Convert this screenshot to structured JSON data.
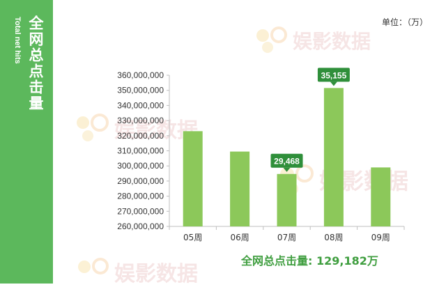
{
  "side": {
    "title": "全网总点击量",
    "subtitle": "Total net hits"
  },
  "unit": "单位：（万）",
  "watermark": "娱影数据",
  "total_text": "全网总点击量: 129,182万",
  "colors": {
    "bar": "#8cc85a",
    "panel": "#5cb85c",
    "callout": "#2f8f3a"
  },
  "chart_data": {
    "type": "bar",
    "categories": [
      "05周",
      "06周",
      "07周",
      "08周",
      "09周"
    ],
    "values": [
      323000000,
      309500000,
      294680000,
      351550000,
      299000000
    ],
    "callouts": [
      {
        "index": 2,
        "label": "29,468"
      },
      {
        "index": 3,
        "label": "35,155"
      }
    ],
    "yticks": [
      "260,000,000",
      "270,000,000",
      "280,000,000",
      "290,000,000",
      "300,000,000",
      "310,000,000",
      "320,000,000",
      "330,000,000",
      "340,000,000",
      "350,000,000",
      "360,000,000"
    ],
    "ylim": [
      260000000,
      360000000
    ],
    "title": "",
    "xlabel": "",
    "ylabel": ""
  }
}
